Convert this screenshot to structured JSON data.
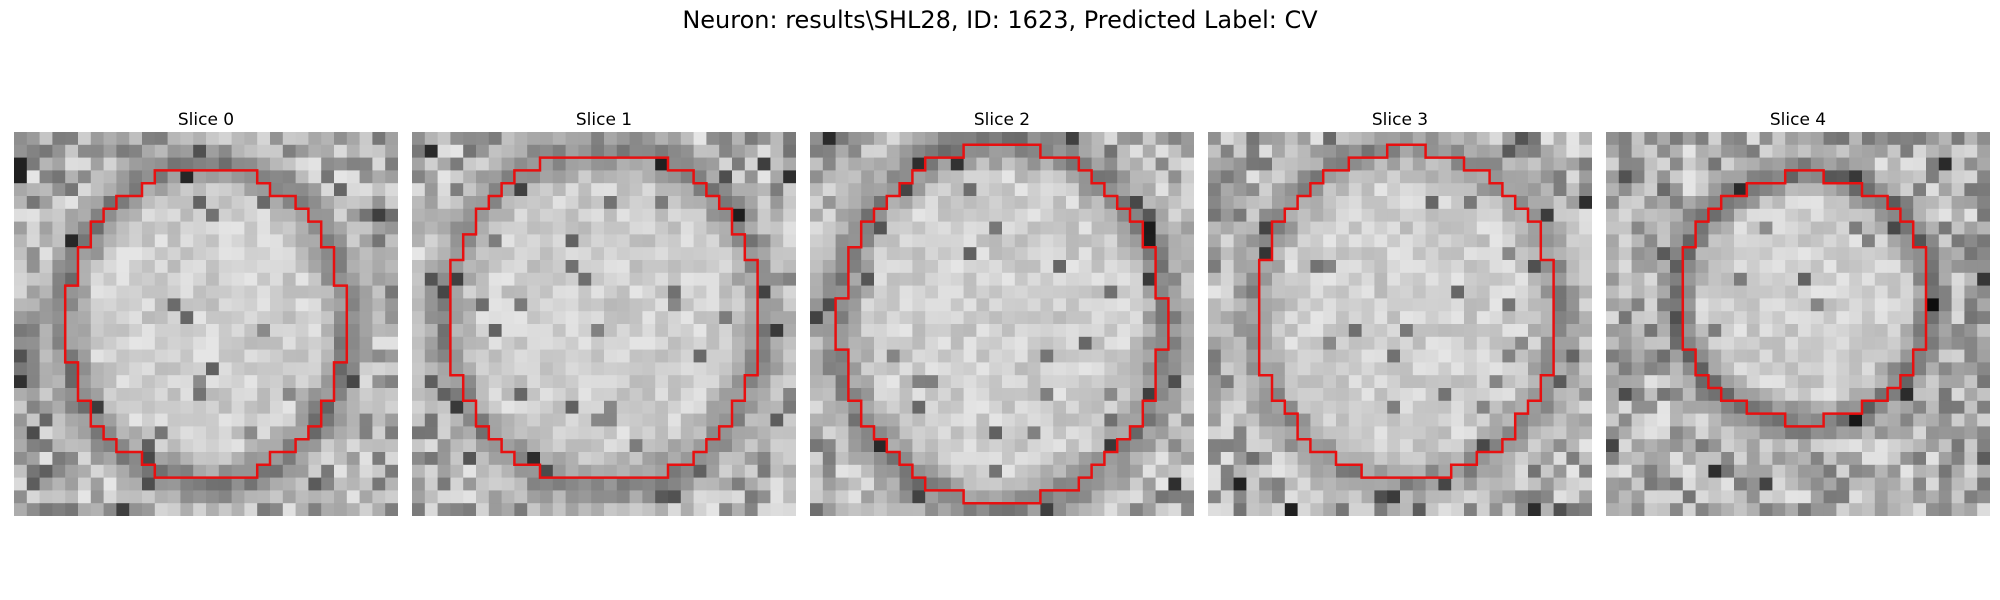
{
  "figure": {
    "title": "Neuron: results\\SHL28, ID: 1623, Predicted Label: CV",
    "contour_color": "#e81010"
  },
  "slices": [
    {
      "title": "Slice 0",
      "grid": 30,
      "ellipse": {
        "cx": 15,
        "cy": 15,
        "rx": 10.8,
        "ry": 12.2
      },
      "ring_darkness": 0.35,
      "seed": 11
    },
    {
      "title": "Slice 1",
      "grid": 30,
      "ellipse": {
        "cx": 15,
        "cy": 14.5,
        "rx": 12.2,
        "ry": 13.0
      },
      "ring_darkness": 0.3,
      "seed": 23
    },
    {
      "title": "Slice 2",
      "grid": 30,
      "ellipse": {
        "cx": 15,
        "cy": 15,
        "rx": 12.6,
        "ry": 14.0
      },
      "ring_darkness": 0.32,
      "seed": 37
    },
    {
      "title": "Slice 3",
      "grid": 30,
      "ellipse": {
        "cx": 15.5,
        "cy": 14.2,
        "rx": 11.8,
        "ry": 12.8
      },
      "ring_darkness": 0.28,
      "seed": 41
    },
    {
      "title": "Slice 4",
      "grid": 30,
      "ellipse": {
        "cx": 15.5,
        "cy": 13.0,
        "rx": 9.8,
        "ry": 9.6
      },
      "ring_darkness": 0.42,
      "seed": 53
    }
  ]
}
